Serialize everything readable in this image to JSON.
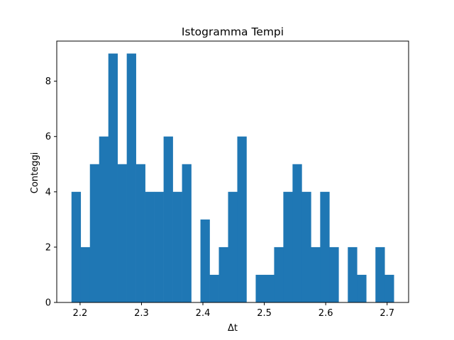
{
  "chart_data": {
    "type": "bar",
    "title": "Istogramma Tempi",
    "xlabel": "Δt",
    "ylabel": "Conteggi",
    "xlim": [
      2.162,
      2.735
    ],
    "ylim": [
      0,
      9.45
    ],
    "grid": false,
    "bar_color": "#1f77b4",
    "bin_edges_start": 2.186,
    "bin_width": 0.015,
    "counts": [
      4,
      2,
      5,
      6,
      9,
      5,
      9,
      5,
      4,
      4,
      6,
      4,
      5,
      0,
      3,
      1,
      2,
      4,
      6,
      0,
      1,
      1,
      2,
      4,
      5,
      4,
      2,
      4,
      2,
      0,
      2,
      1,
      0,
      2,
      1
    ],
    "x_ticks": [
      2.2,
      2.3,
      2.4,
      2.5,
      2.6,
      2.7
    ],
    "x_tick_labels": [
      "2.2",
      "2.3",
      "2.4",
      "2.5",
      "2.6",
      "2.7"
    ],
    "y_ticks": [
      0,
      2,
      4,
      6,
      8
    ],
    "y_tick_labels": [
      "0",
      "2",
      "4",
      "6",
      "8"
    ]
  }
}
